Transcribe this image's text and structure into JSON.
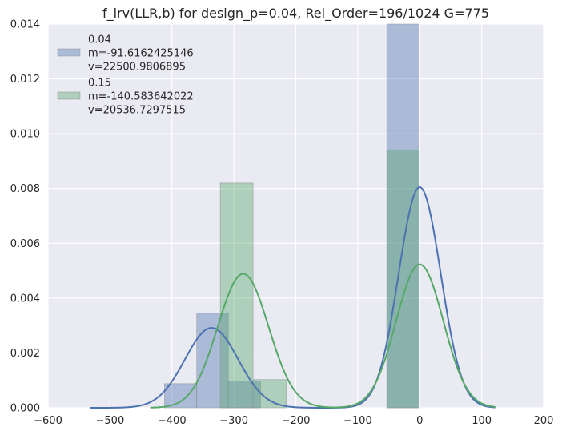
{
  "chart_data": {
    "type": "bar",
    "title": "f_lrv(LLR,b) for design_p=0.04, Rel_Order=196/1024 G=775",
    "xlim": [
      -600,
      200
    ],
    "ylim": [
      0,
      0.014
    ],
    "xticks": [
      -600,
      -500,
      -400,
      -300,
      -200,
      -100,
      0,
      100,
      200
    ],
    "yticks": [
      0.0,
      0.002,
      0.004,
      0.006,
      0.008,
      0.01,
      0.012,
      0.014
    ],
    "xtick_labels": [
      "−600",
      "−500",
      "−400",
      "−300",
      "−200",
      "−100",
      "0",
      "100",
      "200"
    ],
    "ytick_labels": [
      "0.000",
      "0.002",
      "0.004",
      "0.006",
      "0.008",
      "0.010",
      "0.012",
      "0.014"
    ],
    "grid": true,
    "legend_position": "top-left",
    "background": "#eaeaf2",
    "series": [
      {
        "name": "0.04",
        "legend_lines": [
          "0.04",
          " m=-91.6162425146",
          " v=22500.9806895"
        ],
        "color": "#4c72b0",
        "histogram": [
          {
            "x0": -412,
            "x1": -360,
            "value": 0.00088
          },
          {
            "x0": -360,
            "x1": -309,
            "value": 0.00345
          },
          {
            "x0": -309,
            "x1": -257,
            "value": 0.00098
          },
          {
            "x0": -53,
            "x1": -1,
            "value": 0.01405
          }
        ],
        "kde_components": [
          {
            "weight": 0.314,
            "mu": -336,
            "sigma": 43
          },
          {
            "weight": 0.686,
            "mu": 0,
            "sigma": 34
          }
        ],
        "kde_range": [
          -532,
          122
        ]
      },
      {
        "name": "0.15",
        "legend_lines": [
          "0.15",
          " m=-140.583642022",
          " v=20536.7297515"
        ],
        "color": "#55a868",
        "histogram": [
          {
            "x0": -322,
            "x1": -269,
            "value": 0.0082
          },
          {
            "x0": -269,
            "x1": -215,
            "value": 0.00103
          },
          {
            "x0": -53,
            "x1": -1,
            "value": 0.0094
          }
        ],
        "kde_components": [
          {
            "weight": 0.502,
            "mu": -285,
            "sigma": 41
          },
          {
            "weight": 0.498,
            "mu": 0,
            "sigma": 38
          }
        ],
        "kde_range": [
          -435,
          122
        ]
      }
    ]
  }
}
